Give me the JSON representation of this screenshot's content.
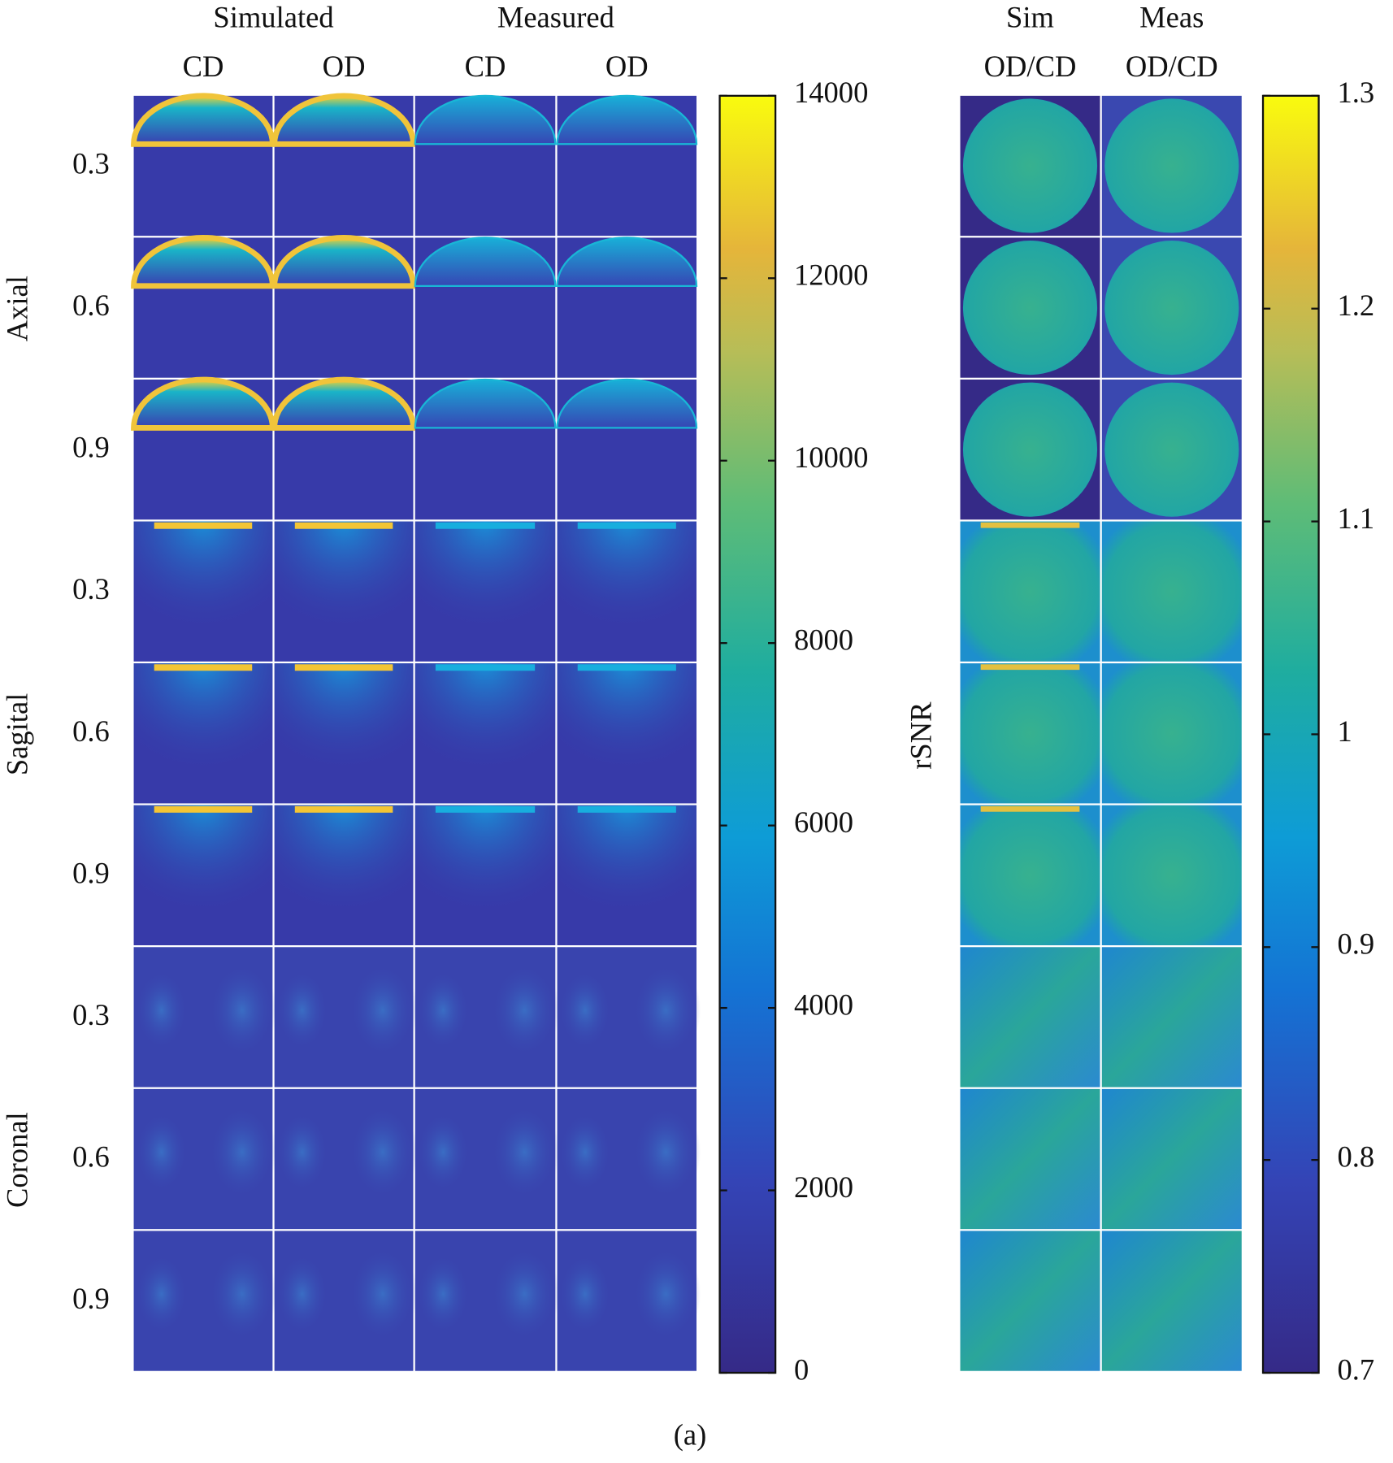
{
  "columns_left": {
    "groups": [
      "Simulated",
      "Measured"
    ],
    "subs": [
      "CD",
      "OD",
      "CD",
      "OD"
    ]
  },
  "columns_right": {
    "groups": [
      "Sim",
      "Meas"
    ],
    "subs": [
      "OD/CD",
      "OD/CD"
    ]
  },
  "row_groups": [
    {
      "label": "Axial",
      "rows": [
        "0.3",
        "0.6",
        "0.9"
      ]
    },
    {
      "label": "Sagital",
      "rows": [
        "0.3",
        "0.6",
        "0.9"
      ]
    },
    {
      "label": "Coronal",
      "rows": [
        "0.3",
        "0.6",
        "0.9"
      ]
    }
  ],
  "colorbars": [
    {
      "lim": [
        0,
        14000
      ],
      "ticks": [
        0,
        2000,
        4000,
        6000,
        8000,
        10000,
        12000,
        14000
      ]
    },
    {
      "label": "rSNR",
      "lim": [
        0.7,
        1.3
      ],
      "ticks": [
        0.7,
        0.8,
        0.9,
        1,
        1.1,
        1.2,
        1.3
      ]
    }
  ],
  "caption": "(a)"
}
